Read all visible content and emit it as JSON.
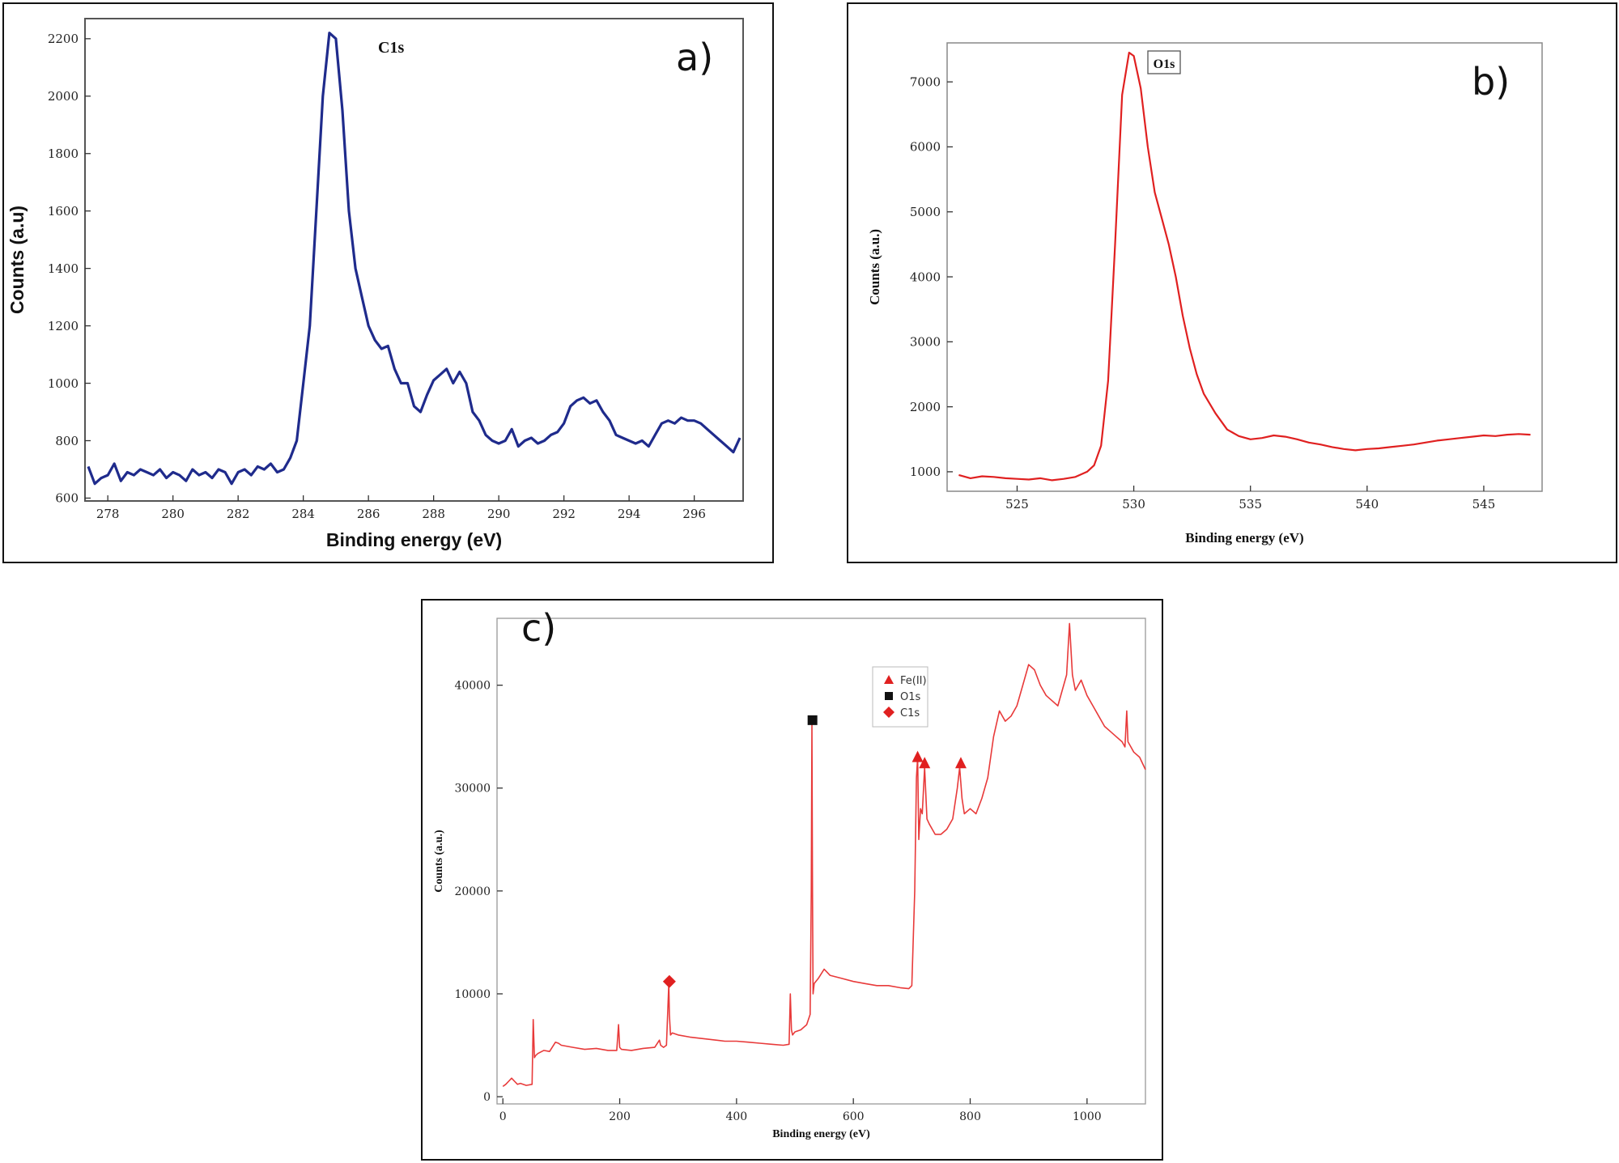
{
  "chart_data": [
    {
      "type": "line",
      "panel_label": "a)",
      "annotation": "C1s",
      "xlabel": "Binding energy (eV)",
      "ylabel": "Counts (a.u)",
      "xlim": [
        277.3,
        297.5
      ],
      "ylim": [
        590,
        2270
      ],
      "xticks": [
        278,
        280,
        282,
        284,
        286,
        288,
        290,
        292,
        294,
        296
      ],
      "yticks": [
        600,
        800,
        1000,
        1200,
        1400,
        1600,
        1800,
        2000,
        2200
      ],
      "grid": false,
      "color": "#1f2b8c",
      "series": [
        {
          "x": [
            277.4,
            277.6,
            277.8,
            278.0,
            278.2,
            278.4,
            278.6,
            278.8,
            279.0,
            279.2,
            279.4,
            279.6,
            279.8,
            280.0,
            280.2,
            280.4,
            280.6,
            280.8,
            281.0,
            281.2,
            281.4,
            281.6,
            281.8,
            282.0,
            282.2,
            282.4,
            282.6,
            282.8,
            283.0,
            283.2,
            283.4,
            283.6,
            283.8,
            284.0,
            284.2,
            284.4,
            284.6,
            284.8,
            285.0,
            285.2,
            285.4,
            285.6,
            285.8,
            286.0,
            286.2,
            286.4,
            286.6,
            286.8,
            287.0,
            287.2,
            287.4,
            287.6,
            287.8,
            288.0,
            288.2,
            288.4,
            288.6,
            288.8,
            289.0,
            289.2,
            289.4,
            289.6,
            289.8,
            290.0,
            290.2,
            290.4,
            290.6,
            290.8,
            291.0,
            291.2,
            291.4,
            291.6,
            291.8,
            292.0,
            292.2,
            292.4,
            292.6,
            292.8,
            293.0,
            293.2,
            293.4,
            293.6,
            293.8,
            294.0,
            294.2,
            294.4,
            294.6,
            294.8,
            295.0,
            295.2,
            295.4,
            295.6,
            295.8,
            296.0,
            296.2,
            296.4,
            296.6,
            296.8,
            297.0,
            297.2,
            297.4
          ],
          "y": [
            710,
            650,
            670,
            680,
            720,
            660,
            690,
            680,
            700,
            690,
            680,
            700,
            670,
            690,
            680,
            660,
            700,
            680,
            690,
            670,
            700,
            690,
            650,
            690,
            700,
            680,
            710,
            700,
            720,
            690,
            700,
            740,
            800,
            1000,
            1200,
            1600,
            2000,
            2220,
            2200,
            1950,
            1600,
            1400,
            1300,
            1200,
            1150,
            1120,
            1130,
            1050,
            1000,
            1000,
            920,
            900,
            960,
            1010,
            1030,
            1050,
            1000,
            1040,
            1000,
            900,
            870,
            820,
            800,
            790,
            800,
            840,
            780,
            800,
            810,
            790,
            800,
            820,
            830,
            860,
            920,
            940,
            950,
            930,
            940,
            900,
            870,
            820,
            810,
            800,
            790,
            800,
            780,
            820,
            860,
            870,
            860,
            880,
            870,
            870,
            860,
            840,
            820,
            800,
            780,
            760,
            810
          ]
        }
      ]
    },
    {
      "type": "line",
      "panel_label": "b)",
      "annotation": "O1s",
      "xlabel": "Binding energy (eV)",
      "ylabel": "Counts (a.u.)",
      "xlim": [
        522,
        547.5
      ],
      "ylim": [
        700,
        7600
      ],
      "xticks": [
        525,
        530,
        535,
        540,
        545
      ],
      "yticks": [
        1000,
        2000,
        3000,
        4000,
        5000,
        6000,
        7000
      ],
      "grid": false,
      "color": "#e02020",
      "series": [
        {
          "x": [
            522.5,
            523.0,
            523.5,
            524.0,
            524.5,
            525.0,
            525.5,
            526.0,
            526.5,
            527.0,
            527.5,
            528.0,
            528.3,
            528.6,
            528.9,
            529.2,
            529.5,
            529.8,
            530.0,
            530.3,
            530.6,
            530.9,
            531.2,
            531.5,
            531.8,
            532.1,
            532.4,
            532.7,
            533.0,
            533.5,
            534.0,
            534.5,
            535.0,
            535.5,
            536.0,
            536.5,
            537.0,
            537.5,
            538.0,
            538.5,
            539.0,
            539.5,
            540.0,
            540.5,
            541.0,
            541.5,
            542.0,
            542.5,
            543.0,
            543.5,
            544.0,
            544.5,
            545.0,
            545.5,
            546.0,
            546.5,
            547.0
          ],
          "y": [
            950,
            900,
            930,
            920,
            900,
            890,
            880,
            900,
            870,
            890,
            920,
            1000,
            1100,
            1400,
            2400,
            4500,
            6800,
            7450,
            7400,
            6900,
            6000,
            5300,
            4900,
            4500,
            4000,
            3400,
            2900,
            2500,
            2200,
            1900,
            1650,
            1550,
            1500,
            1520,
            1560,
            1540,
            1500,
            1450,
            1420,
            1380,
            1350,
            1330,
            1350,
            1360,
            1380,
            1400,
            1420,
            1450,
            1480,
            1500,
            1520,
            1540,
            1560,
            1550,
            1570,
            1580,
            1570
          ]
        }
      ]
    },
    {
      "type": "line",
      "panel_label": "c)",
      "xlabel": "Binding energy (eV)",
      "ylabel": "Counts (a.u.)",
      "xlim": [
        -10,
        1100
      ],
      "ylim": [
        -700,
        46500
      ],
      "xticks": [
        0,
        200,
        400,
        600,
        800,
        1000
      ],
      "yticks": [
        0,
        10000,
        20000,
        30000,
        40000
      ],
      "grid": false,
      "color": "#e83a3a",
      "legend": {
        "position": "top-center",
        "entries": [
          {
            "label": "Fe(II)",
            "marker": "triangle",
            "color": "#e02020"
          },
          {
            "label": "O1s",
            "marker": "square",
            "color": "#111111"
          },
          {
            "label": "C1s",
            "marker": "diamond",
            "color": "#e02020"
          }
        ]
      },
      "markers": [
        {
          "series": "C1s",
          "x": 285,
          "y": 11200
        },
        {
          "series": "O1s",
          "x": 530,
          "y": 36600
        },
        {
          "series": "Fe(II)",
          "x": 710,
          "y": 33000
        },
        {
          "series": "Fe(II)",
          "x": 722,
          "y": 32400
        },
        {
          "series": "Fe(II)",
          "x": 784,
          "y": 32400
        }
      ],
      "series": [
        {
          "x": [
            0,
            5,
            10,
            15,
            20,
            25,
            30,
            40,
            50,
            52,
            54,
            56,
            60,
            70,
            80,
            90,
            95,
            100,
            120,
            140,
            160,
            180,
            195,
            198,
            200,
            203,
            220,
            240,
            260,
            268,
            270,
            275,
            280,
            284,
            285,
            287,
            290,
            300,
            320,
            350,
            380,
            400,
            420,
            440,
            460,
            480,
            490,
            492,
            494,
            496,
            500,
            510,
            520,
            526,
            528,
            529,
            530,
            531,
            533,
            540,
            550,
            560,
            580,
            600,
            620,
            640,
            660,
            680,
            695,
            700,
            705,
            708,
            710,
            712,
            715,
            718,
            722,
            726,
            730,
            740,
            750,
            760,
            770,
            778,
            782,
            786,
            790,
            800,
            810,
            820,
            830,
            840,
            850,
            860,
            870,
            880,
            890,
            900,
            910,
            920,
            930,
            940,
            950,
            960,
            965,
            970,
            975,
            980,
            990,
            1000,
            1010,
            1020,
            1030,
            1040,
            1050,
            1060,
            1065,
            1068,
            1070,
            1080,
            1090,
            1100
          ],
          "y": [
            1000,
            1200,
            1500,
            1800,
            1500,
            1200,
            1300,
            1100,
            1200,
            7500,
            3800,
            4000,
            4200,
            4500,
            4400,
            5300,
            5200,
            5000,
            4800,
            4600,
            4700,
            4500,
            4500,
            7000,
            4800,
            4600,
            4500,
            4700,
            4800,
            5500,
            5000,
            4800,
            5000,
            11000,
            8000,
            6000,
            6200,
            6000,
            5800,
            5600,
            5400,
            5400,
            5300,
            5200,
            5100,
            5000,
            5100,
            10000,
            6500,
            6000,
            6300,
            6500,
            7000,
            8000,
            20000,
            36500,
            20000,
            10000,
            11000,
            11500,
            12400,
            11800,
            11500,
            11200,
            11000,
            10800,
            10800,
            10600,
            10500,
            10800,
            20000,
            31000,
            33000,
            25000,
            28000,
            27500,
            32000,
            27000,
            26500,
            25500,
            25500,
            26000,
            27000,
            30000,
            32000,
            29000,
            27500,
            28000,
            27500,
            29000,
            31000,
            35000,
            37500,
            36500,
            37000,
            38000,
            40000,
            42000,
            41500,
            40000,
            39000,
            38500,
            38000,
            40000,
            41000,
            46000,
            41000,
            39500,
            40500,
            39000,
            38000,
            37000,
            36000,
            35500,
            35000,
            34500,
            34000,
            37500,
            34500,
            33500,
            33000,
            31800
          ]
        }
      ]
    }
  ]
}
